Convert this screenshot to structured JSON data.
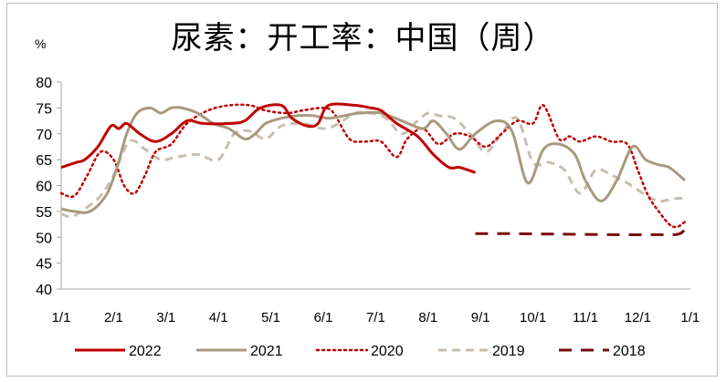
{
  "title": "尿素：开工率：中国（周）",
  "unit": "%",
  "chart_data": {
    "type": "line",
    "title": "尿素：开工率：中国（周）",
    "ylabel": "%",
    "xlabel": "",
    "ylim": [
      40,
      80
    ],
    "yticks": [
      40,
      45,
      50,
      55,
      60,
      65,
      70,
      75,
      80
    ],
    "xticks": [
      "1/1",
      "2/1",
      "3/1",
      "4/1",
      "5/1",
      "6/1",
      "7/1",
      "8/1",
      "9/1",
      "10/1",
      "11/1",
      "12/1",
      "1/1"
    ],
    "x_unit": "month offset from Jan 1 (0 = 1/1, 12 = next 1/1)",
    "grid": false,
    "legend_position": "bottom",
    "series": [
      {
        "name": "2022",
        "color": "#C00000",
        "style": "solid",
        "width": 3,
        "x": [
          0,
          0.3,
          0.45,
          0.7,
          0.95,
          1.1,
          1.25,
          1.5,
          1.8,
          2.1,
          2.4,
          2.7,
          3.2,
          3.5,
          3.8,
          4.2,
          4.4,
          4.7,
          4.9,
          5.1,
          5.6,
          5.9,
          6.1,
          6.4,
          6.8,
          7.1,
          7.4,
          7.6,
          7.9
        ],
        "values": [
          63.5,
          64.5,
          65,
          67.5,
          71.5,
          71,
          72,
          70,
          68.5,
          70,
          72.5,
          72,
          72,
          72.5,
          75,
          75.5,
          73,
          71.5,
          72,
          75.5,
          75.5,
          75,
          74.5,
          72,
          69.5,
          66,
          63.5,
          63.5,
          62.5
        ]
      },
      {
        "name": "2021",
        "color": "#A89A7E",
        "style": "solid",
        "width": 3,
        "x": [
          0,
          0.25,
          0.55,
          0.85,
          1.05,
          1.25,
          1.45,
          1.7,
          1.9,
          2.1,
          2.3,
          2.6,
          2.9,
          3.2,
          3.5,
          3.7,
          3.9,
          4.2,
          4.5,
          4.8,
          5.1,
          5.4,
          5.7,
          6.1,
          6.5,
          6.9,
          7.1,
          7.35,
          7.6,
          7.9,
          8.3,
          8.6,
          8.9,
          9.2,
          9.5,
          9.8,
          10.0,
          10.3,
          10.6,
          10.9,
          11.15,
          11.4,
          11.6,
          11.9
        ],
        "values": [
          55.5,
          55,
          55,
          58,
          63,
          70,
          74,
          75,
          74,
          75,
          75,
          74,
          72,
          71,
          69,
          70,
          72,
          73,
          73.5,
          73.5,
          73,
          73.5,
          74,
          74,
          72.5,
          71,
          72.5,
          70,
          67,
          70,
          72.5,
          70.5,
          60.5,
          67,
          68,
          66,
          61,
          57,
          61,
          67.5,
          65,
          64,
          63.5,
          61
        ]
      },
      {
        "name": "2020",
        "color": "#C00000",
        "style": "dotted",
        "width": 2.5,
        "x": [
          0,
          0.25,
          0.5,
          0.75,
          1.0,
          1.2,
          1.4,
          1.6,
          1.8,
          2.1,
          2.4,
          2.8,
          3.2,
          3.6,
          3.9,
          4.3,
          4.6,
          5.0,
          5.2,
          5.5,
          5.8,
          6.1,
          6.4,
          6.6,
          6.9,
          7.2,
          7.5,
          7.8,
          8.1,
          8.4,
          8.7,
          9.0,
          9.2,
          9.5,
          9.7,
          9.9,
          10.2,
          10.5,
          10.8,
          11.0,
          11.2,
          11.4,
          11.6,
          11.75,
          11.9
        ],
        "values": [
          58.5,
          58,
          62,
          66.5,
          65,
          60,
          58.5,
          62,
          66.5,
          68,
          72,
          74.5,
          75.5,
          75.5,
          74.5,
          74,
          74.5,
          75,
          74,
          69,
          68.5,
          68.5,
          65.5,
          69,
          71,
          68,
          70,
          69.5,
          67.5,
          70,
          72.5,
          72,
          75.5,
          69,
          69.5,
          68.5,
          69.5,
          68.5,
          68,
          63,
          58,
          55,
          52.5,
          52,
          53
        ]
      },
      {
        "name": "2019",
        "color": "#C8BEB0",
        "style": "dashed",
        "width": 3,
        "x": [
          0,
          0.2,
          0.45,
          0.75,
          1.0,
          1.3,
          1.6,
          1.9,
          2.2,
          2.6,
          3.0,
          3.3,
          3.6,
          3.9,
          4.2,
          4.6,
          5.0,
          5.3,
          5.6,
          5.9,
          6.2,
          6.5,
          6.8,
          7.0,
          7.2,
          7.5,
          7.8,
          8.1,
          8.4,
          8.7,
          9.0,
          9.3,
          9.6,
          9.9,
          10.2,
          10.5,
          10.8,
          11.1,
          11.4,
          11.7,
          11.9
        ],
        "values": [
          54.5,
          54,
          55.5,
          58,
          62,
          68.5,
          67,
          65,
          65.5,
          66,
          65,
          70,
          70.5,
          69,
          71.5,
          72,
          71,
          72,
          74,
          74,
          73,
          70,
          72.5,
          74,
          73.5,
          73,
          70,
          66.5,
          70,
          73,
          64.5,
          64.5,
          63,
          58.5,
          63,
          62,
          60.5,
          58.5,
          57,
          57.5,
          57.5
        ]
      },
      {
        "name": "2018",
        "color": "#7B0C10",
        "style": "longdash",
        "width": 3,
        "x": [
          7.9,
          8.5,
          9.5,
          10.5,
          11.3,
          11.8,
          11.95
        ],
        "values": [
          50.7,
          50.7,
          50.6,
          50.5,
          50.5,
          50.7,
          52.8
        ]
      }
    ]
  },
  "legend": [
    {
      "label": "2022"
    },
    {
      "label": "2021"
    },
    {
      "label": "2020"
    },
    {
      "label": "2019"
    },
    {
      "label": "2018"
    }
  ]
}
